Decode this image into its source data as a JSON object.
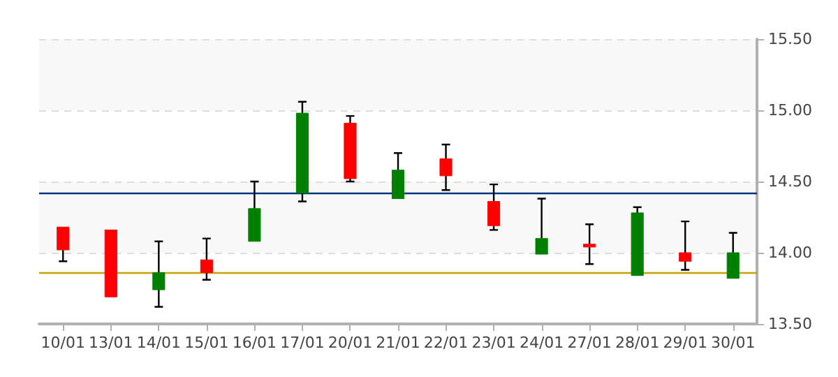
{
  "chart_data": {
    "type": "candlestick",
    "categories": [
      "10/01",
      "13/01",
      "14/01",
      "15/01",
      "16/01",
      "17/01",
      "20/01",
      "21/01",
      "22/01",
      "23/01",
      "24/01",
      "27/01",
      "28/01",
      "29/01",
      "30/01"
    ],
    "ohlc": [
      [
        14.18,
        14.18,
        13.94,
        14.02
      ],
      [
        14.16,
        14.16,
        13.69,
        13.69
      ],
      [
        13.74,
        14.08,
        13.62,
        13.86
      ],
      [
        13.95,
        14.1,
        13.81,
        13.86
      ],
      [
        14.08,
        14.5,
        14.08,
        14.31
      ],
      [
        14.42,
        15.06,
        14.36,
        14.98
      ],
      [
        14.91,
        14.96,
        14.5,
        14.52
      ],
      [
        14.38,
        14.7,
        14.38,
        14.58
      ],
      [
        14.66,
        14.76,
        14.44,
        14.54
      ],
      [
        14.36,
        14.48,
        14.16,
        14.19
      ],
      [
        13.99,
        14.38,
        13.99,
        14.1
      ],
      [
        14.06,
        14.2,
        13.92,
        14.04
      ],
      [
        13.84,
        14.32,
        13.84,
        14.28
      ],
      [
        14.0,
        14.22,
        13.88,
        13.94
      ],
      [
        13.82,
        14.14,
        13.82,
        14.0
      ]
    ],
    "colors": [
      "#ff0000",
      "#ff0000",
      "#008000",
      "#ff0000",
      "#008000",
      "#008000",
      "#ff0000",
      "#008000",
      "#ff0000",
      "#ff0000",
      "#008000",
      "#ff0000",
      "#008000",
      "#ff0000",
      "#008000"
    ],
    "ylim": [
      13.5,
      15.5
    ],
    "yticks": [
      {
        "value": 13.5,
        "label": "13.50"
      },
      {
        "value": 14,
        "label": "14.00"
      },
      {
        "value": 14.5,
        "label": "14.50"
      },
      {
        "value": 15,
        "label": "15.00"
      },
      {
        "value": 15.5,
        "label": "15.50"
      }
    ],
    "grid": "y",
    "ref_lines": [
      {
        "axis": "y",
        "value": 14.42,
        "color": "#003380"
      },
      {
        "axis": "y",
        "value": 13.86,
        "color": "#c8a000"
      }
    ]
  }
}
